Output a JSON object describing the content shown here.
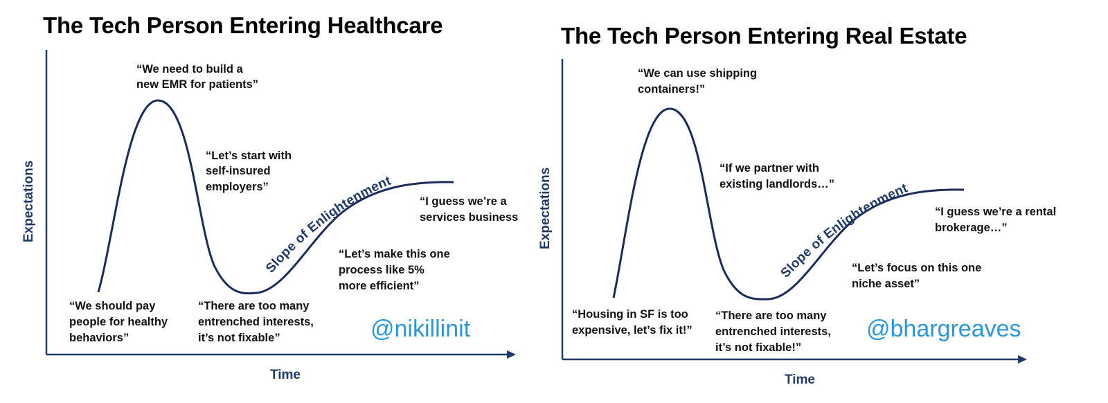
{
  "left": {
    "title": "The Tech Person Entering Healthcare",
    "y_axis": "Expectations",
    "x_axis": "Time",
    "slope_label": "Slope of Enlightenment",
    "peak_quote": [
      "“We need to build a",
      "new EMR for patients”"
    ],
    "start_quote": [
      "“We should pay",
      "people for healthy",
      "behaviors”"
    ],
    "decline_quote": [
      "“Let’s start with",
      "self-insured",
      "employers”"
    ],
    "trough_quote": [
      "“There are too many",
      "entrenched interests,",
      "it’s not fixable”"
    ],
    "slope_quote": [
      "“Let’s make this one",
      "process like 5%",
      "more efficient”"
    ],
    "plateau_quote": [
      "“I guess we’re a",
      "services business"
    ],
    "handle": "@nikillinit"
  },
  "right": {
    "title": "The Tech Person Entering Real Estate",
    "y_axis": "Expectations",
    "x_axis": "Time",
    "slope_label": "Slope of Enlightenment",
    "peak_quote": [
      "“We can use shipping",
      "containers!”"
    ],
    "start_quote": [
      "“Housing in SF is too",
      "expensive, let’s fix it!”"
    ],
    "decline_quote": [
      "“If we partner with",
      "existing landlords…”"
    ],
    "trough_quote": [
      "“There are too many",
      "entrenched interests,",
      "it’s not fixable!”"
    ],
    "slope_quote": [
      "“Let’s focus on this one",
      "niche asset”"
    ],
    "plateau_quote": [
      "“I guess we’re a rental",
      "brokerage…”"
    ],
    "handle": "@bhargreaves"
  },
  "colors": {
    "axis": "#1f3a66",
    "curve": "#1a2b5c",
    "handle": "#2a96dc",
    "text": "#111111"
  }
}
